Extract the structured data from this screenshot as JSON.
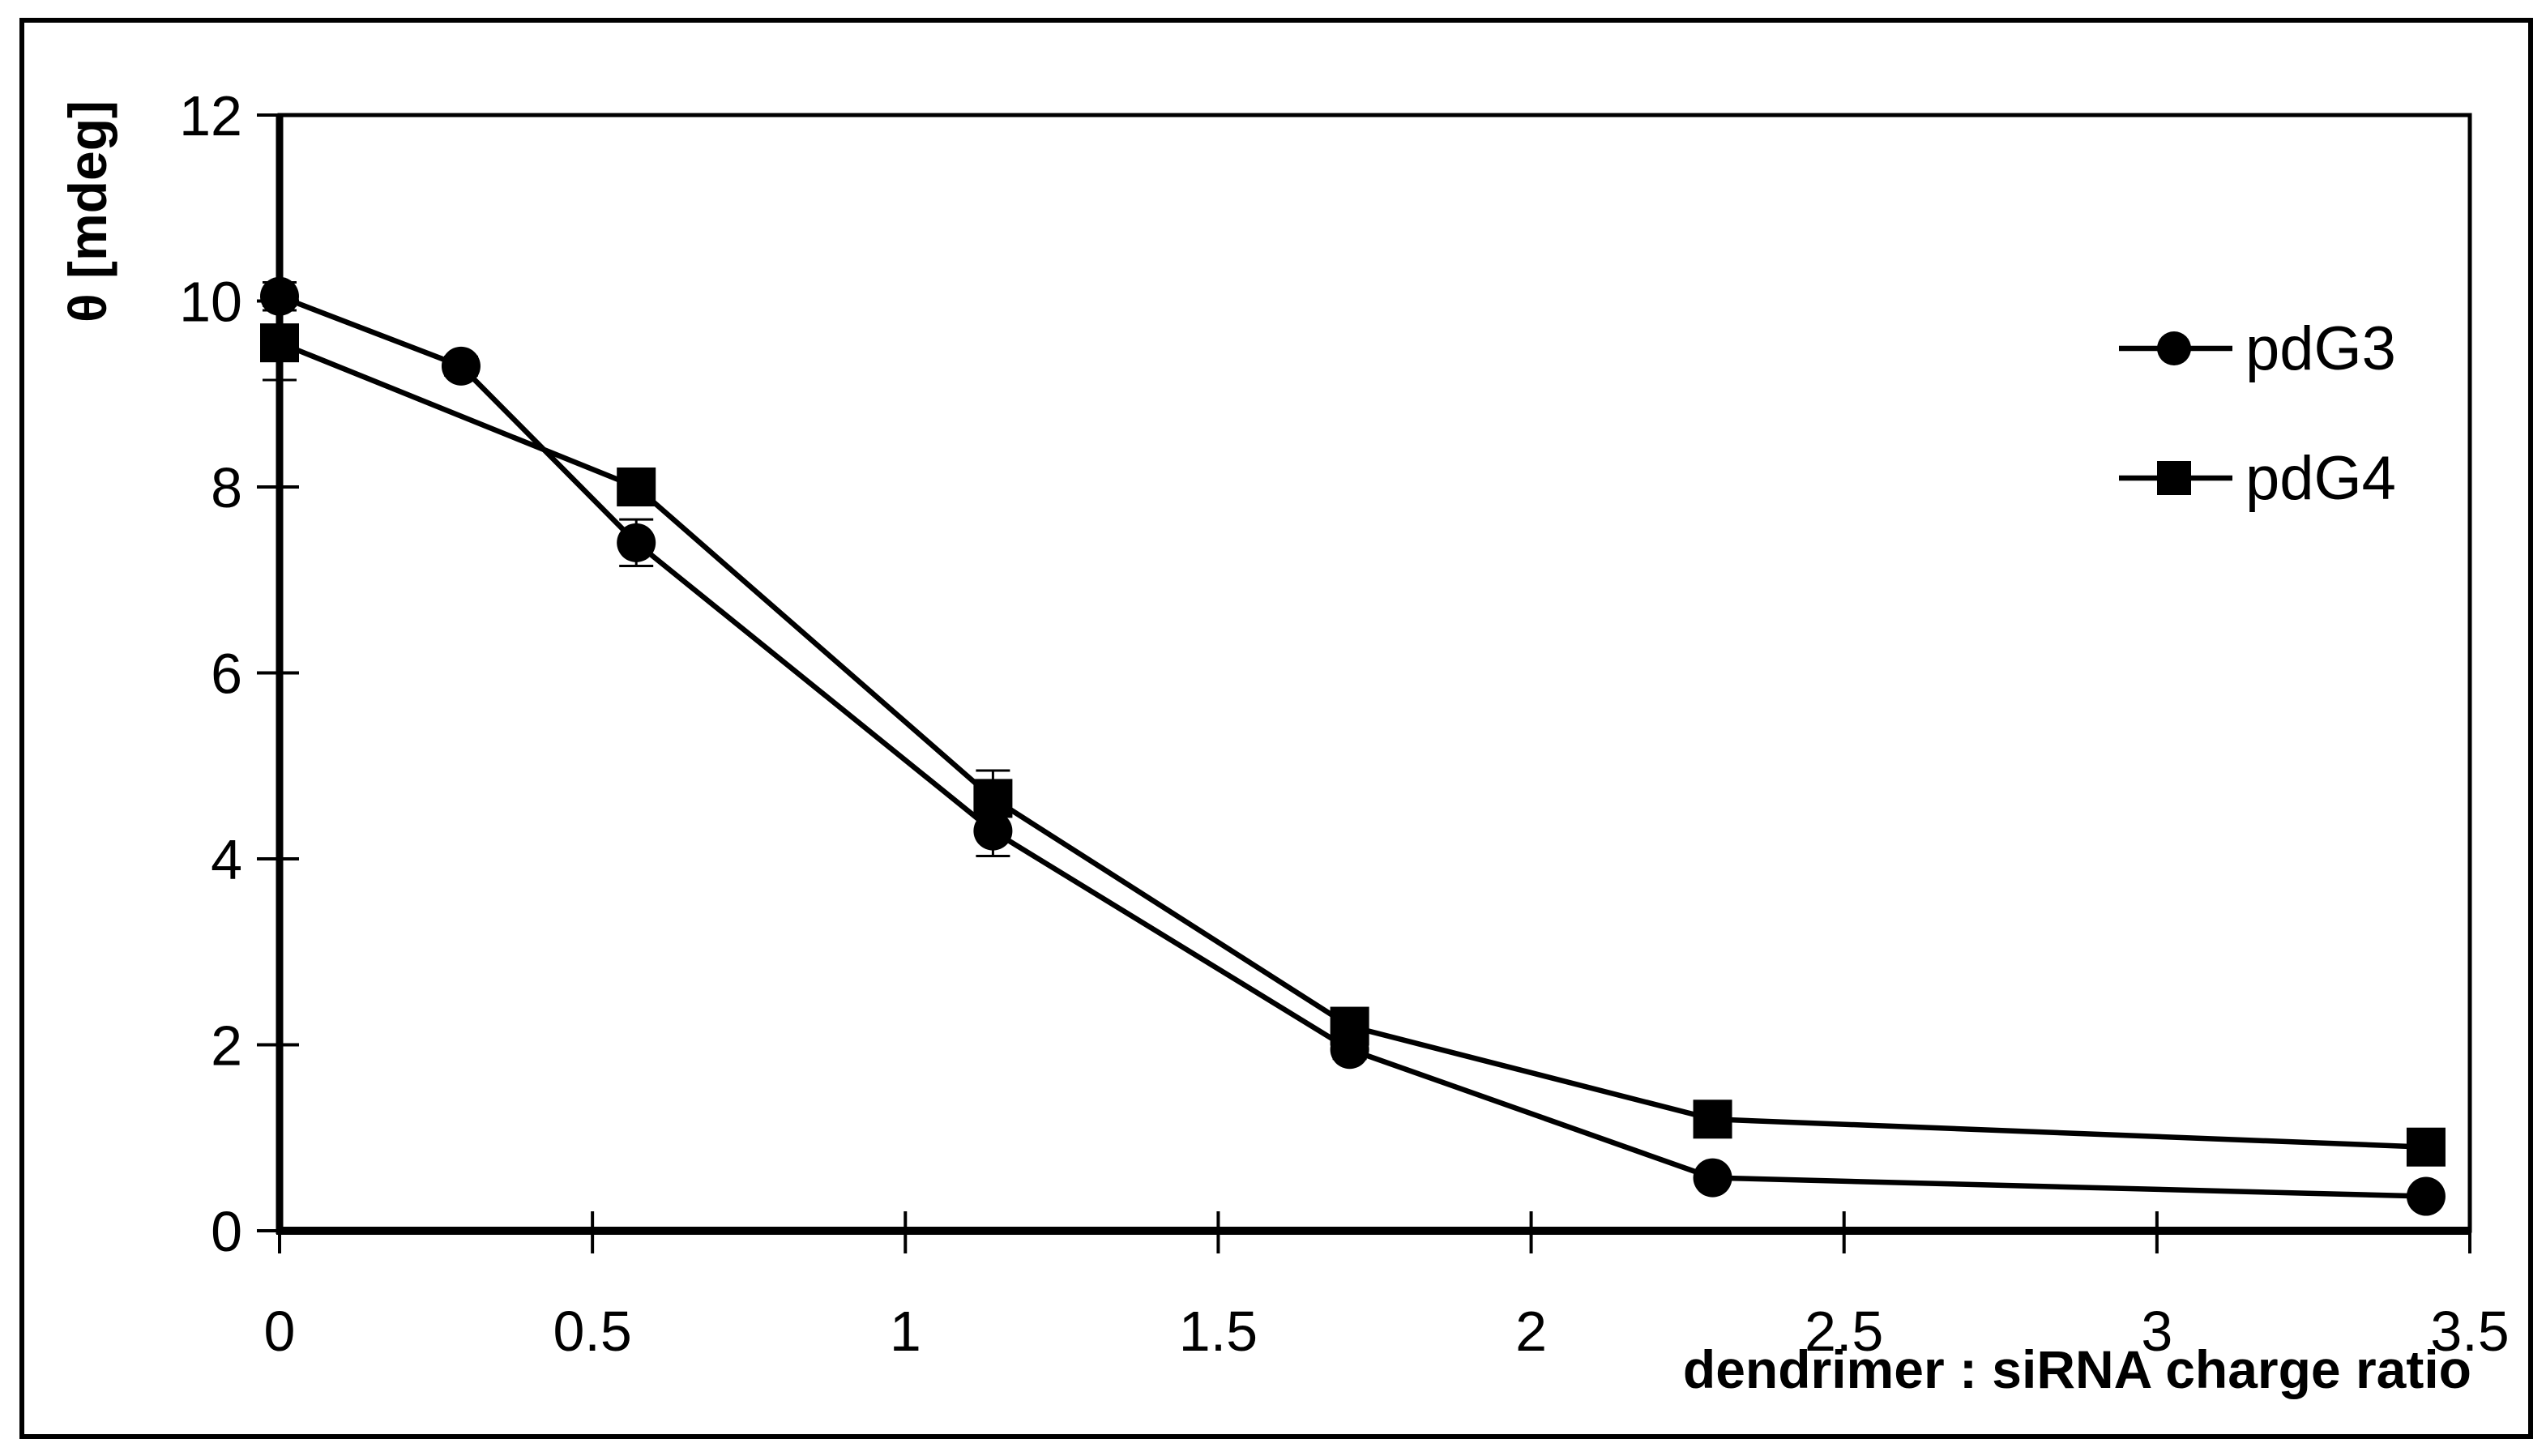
{
  "figure": {
    "background_color": "#ffffff",
    "border_color": "#000000",
    "accent_color": "#000000"
  },
  "chart_data": {
    "type": "line",
    "title": "",
    "xlabel": "dendrimer : siRNA charge ratio",
    "ylabel": "θ [mdeg]",
    "xlim": [
      0,
      3.5
    ],
    "ylim": [
      0,
      12
    ],
    "x_ticks": [
      0,
      0.5,
      1,
      1.5,
      2,
      2.5,
      3,
      3.5
    ],
    "x_tick_labels": [
      "0",
      "0.5",
      "1",
      "1.5",
      "2",
      "2.5",
      "3",
      "3.5"
    ],
    "y_ticks": [
      0,
      2,
      4,
      6,
      8,
      10,
      12
    ],
    "y_tick_labels": [
      "0",
      "2",
      "4",
      "6",
      "8",
      "10",
      "12"
    ],
    "grid": false,
    "legend_position": "upper-right-inside",
    "series": [
      {
        "name": "pdG3",
        "marker": "circle",
        "color": "#000000",
        "x": [
          0,
          0.29,
          0.57,
          1.14,
          1.71,
          2.29,
          3.43
        ],
        "y": [
          10.05,
          9.3,
          7.4,
          4.3,
          1.95,
          0.57,
          0.37
        ],
        "yerr": [
          0.15,
          0.1,
          0.25,
          0.27,
          0.1,
          0.08,
          0.08
        ]
      },
      {
        "name": "pdG4",
        "marker": "square",
        "color": "#000000",
        "x": [
          0,
          0.57,
          1.14,
          1.71,
          2.29,
          3.43
        ],
        "y": [
          9.55,
          8.0,
          4.65,
          2.2,
          1.2,
          0.9
        ],
        "yerr": [
          0.4,
          0.15,
          0.3,
          0.1,
          0.08,
          0.08
        ]
      }
    ]
  }
}
